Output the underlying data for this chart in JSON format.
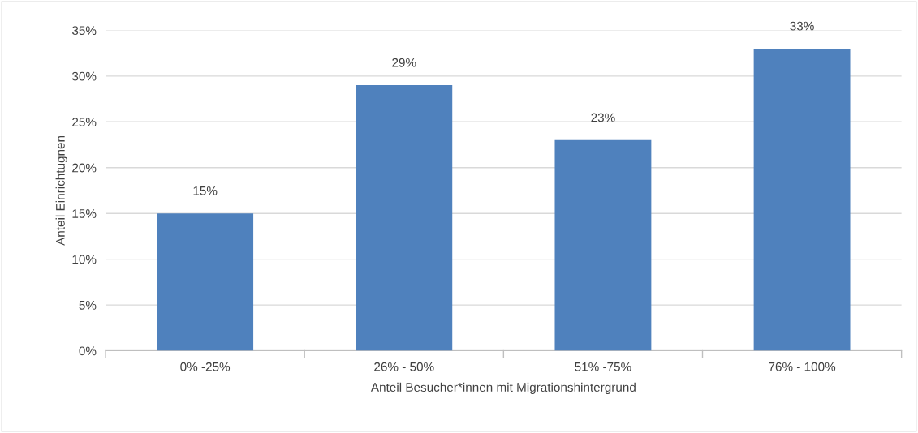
{
  "chart_data": {
    "type": "bar",
    "xlabel": "Anteil Besucher*innen mit Migrationshintergrund",
    "ylabel": "Anteil Einrichtugnen",
    "categories": [
      "0% -25%",
      "26% - 50%",
      "51% -75%",
      "76% - 100%"
    ],
    "values": [
      15,
      29,
      23,
      33
    ],
    "color": "#4f81bd",
    "value_labels": [
      "15%",
      "29%",
      "23%",
      "33%"
    ],
    "ylim": [
      0,
      35
    ],
    "yticks": [
      {
        "value": 0,
        "label": "0%"
      },
      {
        "value": 5,
        "label": "5%"
      },
      {
        "value": 10,
        "label": "10%"
      },
      {
        "value": 15,
        "label": "15%"
      },
      {
        "value": 20,
        "label": "20%"
      },
      {
        "value": 25,
        "label": "25%"
      },
      {
        "value": 30,
        "label": "30%"
      },
      {
        "value": 35,
        "label": "35%"
      }
    ],
    "grid": "y",
    "legend": false
  }
}
